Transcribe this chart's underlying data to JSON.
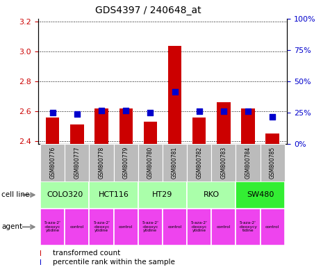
{
  "title": "GDS4397 / 240648_at",
  "samples": [
    "GSM800776",
    "GSM800777",
    "GSM800778",
    "GSM800779",
    "GSM800780",
    "GSM800781",
    "GSM800782",
    "GSM800783",
    "GSM800784",
    "GSM800785"
  ],
  "transformed_counts": [
    2.56,
    2.51,
    2.62,
    2.62,
    2.53,
    3.04,
    2.56,
    2.66,
    2.62,
    2.45
  ],
  "percentile_ranks": [
    25,
    24,
    27,
    27,
    25,
    42,
    26,
    26,
    26,
    22
  ],
  "ylim_left": [
    2.38,
    3.22
  ],
  "ylim_right": [
    0,
    100
  ],
  "yticks_left": [
    2.4,
    2.6,
    2.8,
    3.0,
    3.2
  ],
  "yticks_right": [
    0,
    25,
    50,
    75,
    100
  ],
  "ytick_labels_right": [
    "0%",
    "25%",
    "50%",
    "75%",
    "100%"
  ],
  "cell_lines": [
    {
      "name": "COLO320",
      "start": 0,
      "end": 2,
      "color": "#aaffaa"
    },
    {
      "name": "HCT116",
      "start": 2,
      "end": 4,
      "color": "#aaffaa"
    },
    {
      "name": "HT29",
      "start": 4,
      "end": 6,
      "color": "#aaffaa"
    },
    {
      "name": "RKO",
      "start": 6,
      "end": 8,
      "color": "#aaffaa"
    },
    {
      "name": "SW480",
      "start": 8,
      "end": 10,
      "color": "#33ee33"
    }
  ],
  "agents": [
    {
      "name": "5-aza-2'\n-deoxyc\nytidine",
      "start": 0,
      "end": 1,
      "color": "#ee44ee"
    },
    {
      "name": "control",
      "start": 1,
      "end": 2,
      "color": "#ee44ee"
    },
    {
      "name": "5-aza-2'\n-deoxyc\nytidine",
      "start": 2,
      "end": 3,
      "color": "#ee44ee"
    },
    {
      "name": "control",
      "start": 3,
      "end": 4,
      "color": "#ee44ee"
    },
    {
      "name": "5-aza-2'\n-deoxyc\nytidine",
      "start": 4,
      "end": 5,
      "color": "#ee44ee"
    },
    {
      "name": "control",
      "start": 5,
      "end": 6,
      "color": "#ee44ee"
    },
    {
      "name": "5-aza-2'\n-deoxyc\nytidine",
      "start": 6,
      "end": 7,
      "color": "#ee44ee"
    },
    {
      "name": "control",
      "start": 7,
      "end": 8,
      "color": "#ee44ee"
    },
    {
      "name": "5-aza-2'\n-deoxycy\ntidine",
      "start": 8,
      "end": 9,
      "color": "#ee44ee"
    },
    {
      "name": "control",
      "start": 9,
      "end": 10,
      "color": "#ee44ee"
    }
  ],
  "bar_color": "#cc0000",
  "dot_color": "#0000cc",
  "bar_width": 0.55,
  "dot_size": 30,
  "grid_color": "#000000",
  "sample_bg_color": "#bbbbbb",
  "legend_red_label": "transformed count",
  "legend_blue_label": "percentile rank within the sample",
  "left_axis_color": "#cc0000",
  "right_axis_color": "#0000cc"
}
